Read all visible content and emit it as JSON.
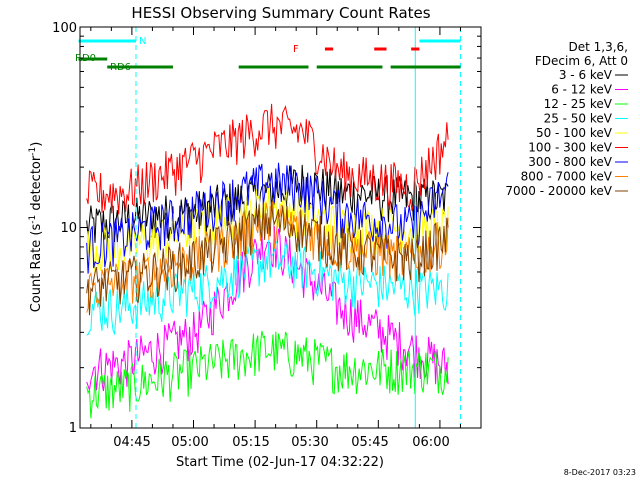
{
  "chart_data": {
    "type": "line",
    "title": "HESSI Observing Summary Count Rates",
    "xlabel": "Start Time (02-Jun-17 04:32:22)",
    "ylabel_main": "Count Rate (s",
    "ylabel_sup": "-1",
    "ylabel_tail": " detector",
    "ylabel_end": ")",
    "y_scale": "log",
    "ylim": [
      1,
      100
    ],
    "xlim": [
      "04:32:22",
      "06:10:00"
    ],
    "x_ticks": [
      "04:45",
      "05:00",
      "05:15",
      "05:30",
      "05:45",
      "06:00"
    ],
    "y_ticks": [
      "1",
      "10",
      "100"
    ],
    "footer_timestamp": "8-Dec-2017 03:23",
    "legend": {
      "header": [
        "Det 1,3,6,",
        "FDecim 6, Att 0"
      ],
      "position": "right"
    },
    "flags": {
      "N": {
        "label": "N",
        "color": "#00ffff",
        "segments": [
          [
            "04:32",
            "04:46"
          ],
          [
            "05:55",
            "06:05"
          ]
        ]
      },
      "F": {
        "label": "F",
        "color": "#ff0000",
        "segments": [
          [
            "05:32",
            "05:34"
          ],
          [
            "05:44",
            "05:47"
          ],
          [
            "05:53",
            "05:55"
          ]
        ]
      },
      "RD0": {
        "label": "RD0",
        "color": "#008000",
        "segments": [
          [
            "04:32",
            "04:39"
          ]
        ]
      },
      "RD6": {
        "label": "RD6",
        "color": "#008000",
        "segments": [
          [
            "04:39",
            "04:55"
          ],
          [
            "05:11",
            "05:28"
          ],
          [
            "05:30",
            "05:46"
          ],
          [
            "05:48",
            "06:05"
          ]
        ]
      }
    },
    "vlines": [
      {
        "time": "04:46",
        "style": "dashed",
        "color": "#00ffff"
      },
      {
        "time": "05:54",
        "style": "solid",
        "color": "#00ffff"
      },
      {
        "time": "06:05",
        "style": "dashed",
        "color": "#00ffff"
      }
    ],
    "data_range": [
      "04:34",
      "06:02"
    ],
    "series": [
      {
        "name": "3 - 6 keV",
        "color": "#000000",
        "profile": [
          [
            0,
            10
          ],
          [
            0.1,
            11
          ],
          [
            0.3,
            12
          ],
          [
            0.5,
            15
          ],
          [
            0.6,
            17
          ],
          [
            0.7,
            15
          ],
          [
            0.9,
            14
          ],
          [
            1.0,
            14
          ]
        ]
      },
      {
        "name": "6 - 12 keV",
        "color": "#ff00ff",
        "profile": [
          [
            0,
            2
          ],
          [
            0.1,
            2.1
          ],
          [
            0.3,
            3
          ],
          [
            0.5,
            9
          ],
          [
            0.6,
            6
          ],
          [
            0.7,
            4
          ],
          [
            0.9,
            2.5
          ],
          [
            1.0,
            2
          ]
        ]
      },
      {
        "name": "12 - 25 keV",
        "color": "#00ff00",
        "profile": [
          [
            0,
            1.5
          ],
          [
            0.1,
            1.6
          ],
          [
            0.3,
            2
          ],
          [
            0.5,
            2.5
          ],
          [
            0.6,
            2.3
          ],
          [
            0.7,
            2
          ],
          [
            0.9,
            2
          ],
          [
            1.0,
            2
          ]
        ]
      },
      {
        "name": "25 - 50 keV",
        "color": "#00ffff",
        "profile": [
          [
            0,
            4
          ],
          [
            0.1,
            4
          ],
          [
            0.3,
            5
          ],
          [
            0.5,
            7
          ],
          [
            0.6,
            6.5
          ],
          [
            0.7,
            5.5
          ],
          [
            0.9,
            5
          ],
          [
            1.0,
            5
          ]
        ]
      },
      {
        "name": "50 - 100 keV",
        "color": "#ffff00",
        "profile": [
          [
            0,
            8
          ],
          [
            0.1,
            8
          ],
          [
            0.3,
            10
          ],
          [
            0.5,
            13
          ],
          [
            0.6,
            12
          ],
          [
            0.7,
            10
          ],
          [
            0.9,
            10
          ],
          [
            1.0,
            10
          ]
        ]
      },
      {
        "name": "100 - 300 keV",
        "color": "#ff0000",
        "profile": [
          [
            0,
            15
          ],
          [
            0.1,
            15
          ],
          [
            0.3,
            22
          ],
          [
            0.5,
            33
          ],
          [
            0.6,
            30
          ],
          [
            0.7,
            19
          ],
          [
            0.9,
            16
          ],
          [
            1.0,
            28
          ]
        ]
      },
      {
        "name": "300 - 800 keV",
        "color": "#0000ff",
        "profile": [
          [
            0,
            8
          ],
          [
            0.1,
            9
          ],
          [
            0.3,
            12
          ],
          [
            0.5,
            17
          ],
          [
            0.6,
            16
          ],
          [
            0.7,
            12
          ],
          [
            0.9,
            10
          ],
          [
            1.0,
            16
          ]
        ]
      },
      {
        "name": "800 - 7000 keV",
        "color": "#ff8000",
        "profile": [
          [
            0,
            5
          ],
          [
            0.1,
            5.5
          ],
          [
            0.3,
            7
          ],
          [
            0.5,
            11
          ],
          [
            0.6,
            10
          ],
          [
            0.7,
            8
          ],
          [
            0.9,
            7
          ],
          [
            1.0,
            9
          ]
        ]
      },
      {
        "name": "7000 - 20000 keV",
        "color": "#804000",
        "profile": [
          [
            0,
            5
          ],
          [
            0.1,
            5.5
          ],
          [
            0.3,
            7
          ],
          [
            0.5,
            11
          ],
          [
            0.6,
            10
          ],
          [
            0.7,
            8
          ],
          [
            0.9,
            7
          ],
          [
            1.0,
            9
          ]
        ]
      }
    ]
  }
}
